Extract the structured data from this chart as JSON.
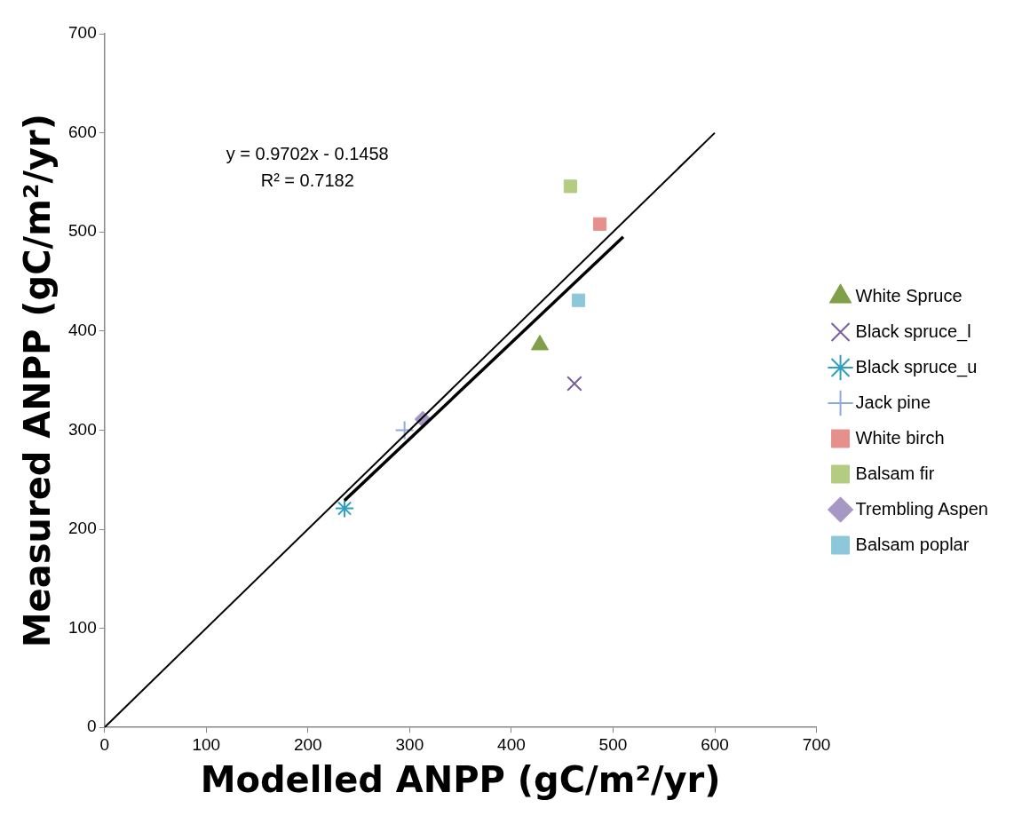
{
  "chart_data": {
    "type": "scatter",
    "xlabel": "Modelled ANPP (gC/m²/yr)",
    "ylabel": "Measured ANPP (gC/m²/yr)",
    "xlim": [
      0,
      700
    ],
    "ylim": [
      0,
      700
    ],
    "xticks": [
      0,
      100,
      200,
      300,
      400,
      500,
      600,
      700
    ],
    "yticks": [
      0,
      100,
      200,
      300,
      400,
      500,
      600,
      700
    ],
    "legend": "right",
    "annotations": [
      "y = 0.9702x - 0.1458",
      "R² = 0.7182"
    ],
    "series": [
      {
        "type": "line",
        "color": "#000000",
        "x": [
          0,
          600
        ],
        "values": [
          0,
          600
        ]
      },
      {
        "type": "line",
        "color": "#000000",
        "x": [
          236,
          510
        ],
        "values": [
          229,
          495
        ]
      },
      {
        "name": "White Spruce",
        "color": "#7f9f48",
        "marker": "triangle",
        "x": [
          428
        ],
        "values": [
          386
        ]
      },
      {
        "name": "Black spruce_l",
        "color": "#7a5fa0",
        "marker": "x",
        "x": [
          462
        ],
        "values": [
          347
        ]
      },
      {
        "name": "Black spruce_u",
        "color": "#2f9fbf",
        "marker": "cross",
        "x": [
          236
        ],
        "values": [
          221
        ]
      },
      {
        "name": "Jack pine",
        "color": "#8ea9db",
        "marker": "cross",
        "x": [
          295
        ],
        "values": [
          300
        ]
      },
      {
        "name": "White birch",
        "color": "#e6908d",
        "marker": "square",
        "x": [
          487
        ],
        "values": [
          508
        ]
      },
      {
        "name": "Balsam fir",
        "color": "#b3cc82",
        "marker": "square",
        "x": [
          458
        ],
        "values": [
          546
        ]
      },
      {
        "name": "Trembling Aspen",
        "color": "#a797c5",
        "marker": "diamond",
        "x": [
          313
        ],
        "values": [
          311
        ]
      },
      {
        "name": "Balsam poplar",
        "color": "#8cc8d9",
        "marker": "square",
        "x": [
          466
        ],
        "values": [
          431
        ]
      }
    ]
  }
}
